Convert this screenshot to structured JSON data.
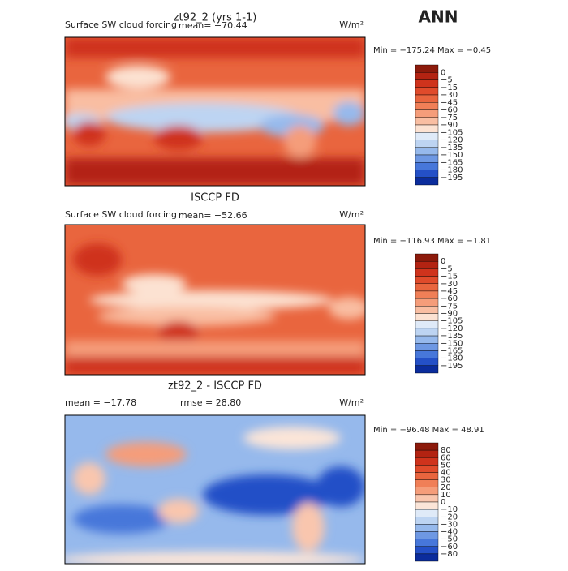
{
  "figure_title": "ANN",
  "panels": [
    {
      "title": "zt92_2 (yrs 1-1)",
      "subtitle": "Surface SW cloud forcing",
      "mean": "mean= −70.44",
      "units": "W/m²",
      "minmax": "Min = −175.24 Max =  −0.45",
      "colorbar": {
        "labels": [
          "0",
          "−5",
          "−15",
          "−30",
          "−45",
          "−60",
          "−75",
          "−90",
          "−105",
          "−120",
          "−135",
          "−150",
          "−165",
          "−180",
          "−195"
        ],
        "colors": [
          "#8c1a0b",
          "#b32312",
          "#cf331c",
          "#e04b2b",
          "#e9653e",
          "#f07f57",
          "#f59d7a",
          "#f9bea2",
          "#fce2d2",
          "#dfeaf8",
          "#bdd4f2",
          "#96b9ec",
          "#6e98e3",
          "#4777da",
          "#2450c7",
          "#0b2c9c"
        ]
      }
    },
    {
      "title": "ISCCP FD",
      "subtitle": "Surface SW cloud forcing",
      "mean": "mean= −52.66",
      "units": "W/m²",
      "minmax": "Min = −116.93 Max =  −1.81",
      "colorbar": {
        "labels": [
          "0",
          "−5",
          "−15",
          "−30",
          "−45",
          "−60",
          "−75",
          "−90",
          "−105",
          "−120",
          "−135",
          "−150",
          "−165",
          "−180",
          "−195"
        ],
        "colors": [
          "#8c1a0b",
          "#b32312",
          "#cf331c",
          "#e04b2b",
          "#e9653e",
          "#f07f57",
          "#f59d7a",
          "#f9bea2",
          "#fce2d2",
          "#dfeaf8",
          "#bdd4f2",
          "#96b9ec",
          "#6e98e3",
          "#4777da",
          "#2450c7",
          "#0b2c9c"
        ]
      }
    },
    {
      "title": "zt92_2 - ISCCP FD",
      "subtitle": "mean = −17.78",
      "mean": "rmse =  28.80",
      "units": "W/m²",
      "minmax": "Min = −96.48 Max =  48.91",
      "colorbar": {
        "labels": [
          "80",
          "60",
          "50",
          "40",
          "30",
          "20",
          "10",
          "0",
          "−10",
          "−20",
          "−30",
          "−40",
          "−50",
          "−60",
          "−80"
        ],
        "colors": [
          "#8c1a0b",
          "#b32312",
          "#cf331c",
          "#e04b2b",
          "#e9653e",
          "#f07f57",
          "#f59d7a",
          "#f9c6ae",
          "#fbe5d8",
          "#dfeaf8",
          "#bdd4f2",
          "#96b9ec",
          "#6e98e3",
          "#4777da",
          "#2450c7",
          "#0b2c9c"
        ]
      }
    }
  ]
}
